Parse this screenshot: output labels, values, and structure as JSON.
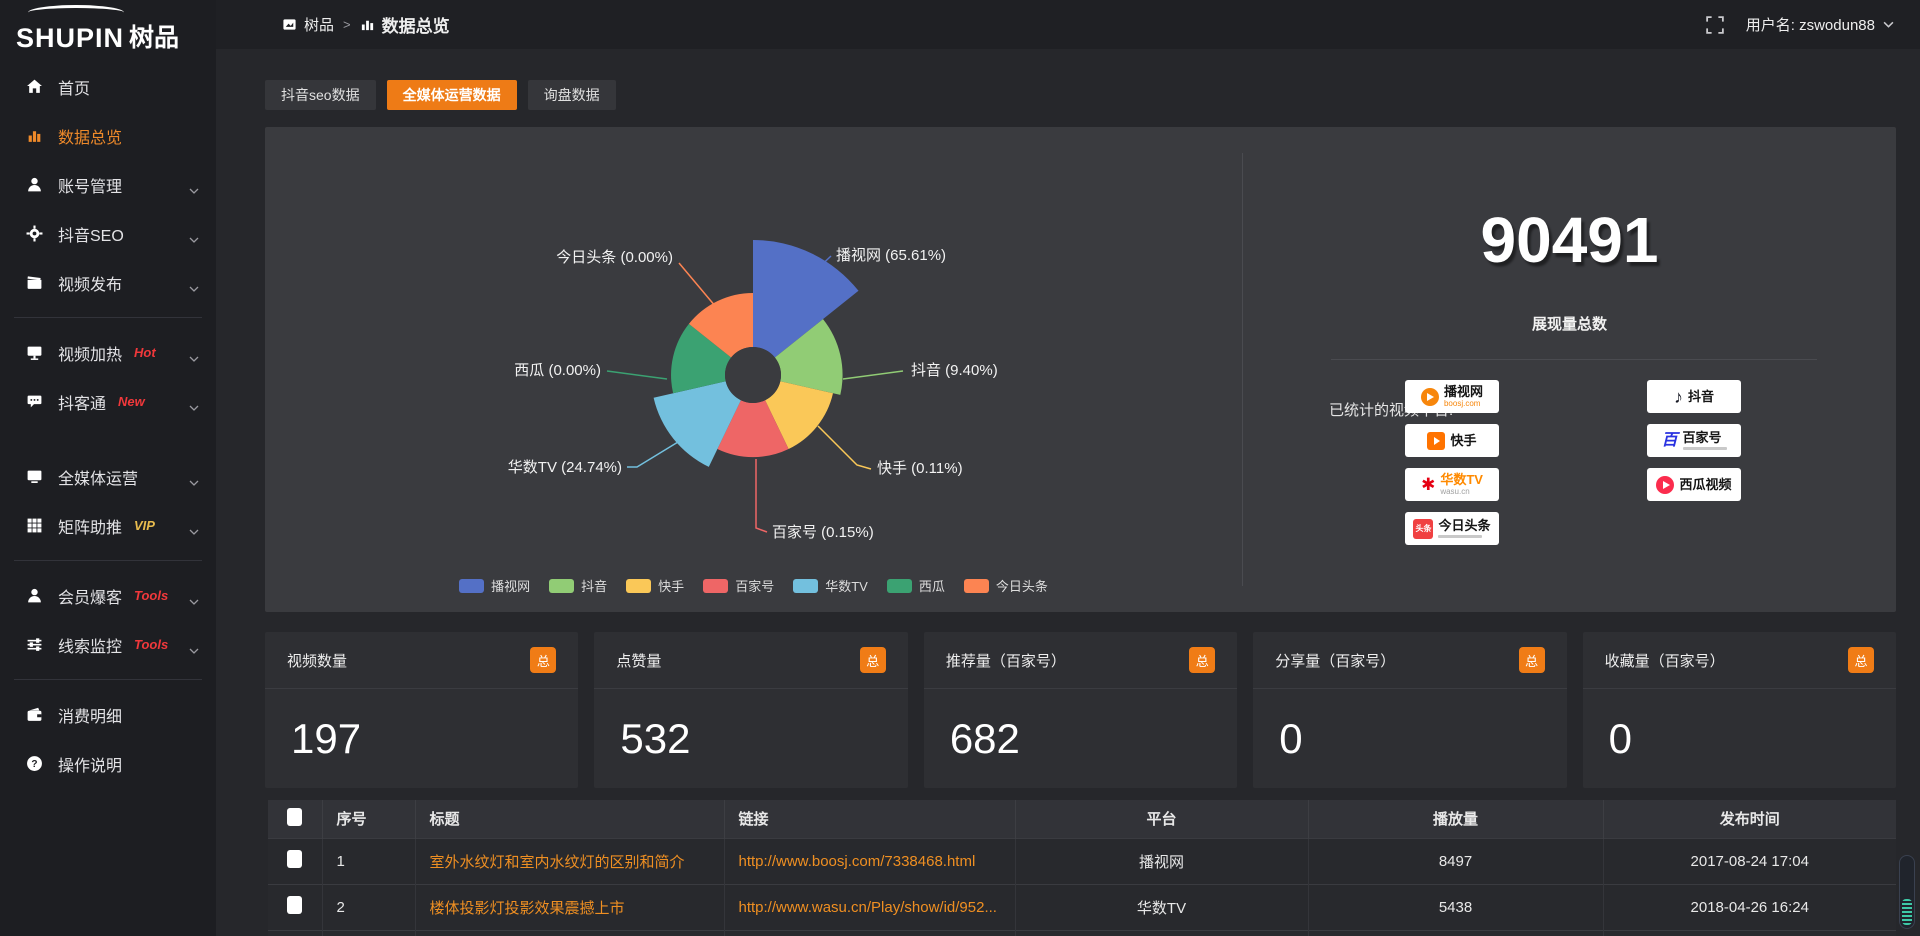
{
  "sidebar": {
    "logo_en": "SHUPIN",
    "logo_cn": "树品",
    "items": [
      {
        "id": "home",
        "icon": "home",
        "label": "首页"
      },
      {
        "id": "data-overview",
        "icon": "chart",
        "label": "数据总览",
        "active": true
      },
      {
        "id": "account",
        "icon": "user",
        "label": "账号管理",
        "chevron": true
      },
      {
        "id": "douyin-seo",
        "icon": "gear",
        "label": "抖音SEO",
        "chevron": true
      },
      {
        "id": "video-publish",
        "icon": "video",
        "label": "视频发布",
        "chevron": true
      },
      {
        "type": "divider"
      },
      {
        "id": "video-heat",
        "icon": "screen",
        "label": "视频加热",
        "badge": "Hot",
        "badge_color": "#f0383b",
        "chevron": true
      },
      {
        "id": "douketong",
        "icon": "chat",
        "label": "抖客通",
        "badge": "New",
        "badge_color": "#f0383b",
        "chevron": true
      },
      {
        "type": "spacer"
      },
      {
        "id": "media-operation",
        "icon": "monitor",
        "label": "全媒体运营",
        "chevron": true
      },
      {
        "id": "matrix-boost",
        "icon": "grid",
        "label": "矩阵助推",
        "badge": "VIP",
        "badge_color": "#e8bc4e",
        "chevron": true
      },
      {
        "type": "divider"
      },
      {
        "id": "member-burst",
        "icon": "user",
        "label": "会员爆客",
        "badge": "Tools",
        "badge_color": "#f0383b",
        "chevron": true
      },
      {
        "id": "clue-monitor",
        "icon": "sliders",
        "label": "线索监控",
        "badge": "Tools",
        "badge_color": "#f0383b",
        "chevron": true
      },
      {
        "type": "divider"
      },
      {
        "id": "consume-detail",
        "icon": "wallet",
        "label": "消费明细"
      },
      {
        "id": "instructions",
        "icon": "question",
        "label": "操作说明"
      }
    ]
  },
  "topbar": {
    "breadcrumb": [
      {
        "label": "树品"
      },
      {
        "label": "数据总览"
      }
    ],
    "user_label": "用户名: zswodun88"
  },
  "tabs": [
    {
      "label": "抖音seo数据"
    },
    {
      "label": "全媒体运营数据",
      "active": true
    },
    {
      "label": "询盘数据"
    }
  ],
  "chart_data": {
    "type": "pie",
    "subtype": "nightingale-rose",
    "label_format": "{name} ({percent}%)",
    "legend_position": "bottom",
    "items": [
      {
        "name": "播视网",
        "percent": 65.61,
        "color": "#5470c6"
      },
      {
        "name": "抖音",
        "percent": 9.4,
        "color": "#91cc75"
      },
      {
        "name": "快手",
        "percent": 0.11,
        "color": "#fac858"
      },
      {
        "name": "百家号",
        "percent": 0.15,
        "color": "#ee6666"
      },
      {
        "name": "华数TV",
        "percent": 24.74,
        "color": "#73c0de"
      },
      {
        "name": "西瓜",
        "percent": 0.0,
        "color": "#3ba272"
      },
      {
        "name": "今日头条",
        "percent": 0.0,
        "color": "#fc8452"
      }
    ]
  },
  "summary": {
    "total": "90491",
    "total_label": "展现量总数",
    "platforms_title": "已统计的视频平台:",
    "platforms_left": [
      {
        "type": "boosj",
        "name": "播视网",
        "sub": "boosj.com",
        "sub_color": "#f7860b"
      },
      {
        "type": "kuaishou",
        "name": "快手"
      },
      {
        "type": "wasu",
        "name": "华数TV",
        "sub": "wasu.cn",
        "sub_color": "#a0a0a0",
        "name_color": "#ff8a00"
      },
      {
        "type": "toutiao",
        "name": "今日头条"
      }
    ],
    "platforms_right": [
      {
        "type": "douyin",
        "name": "抖音"
      },
      {
        "type": "baijia",
        "name": "百家号"
      },
      {
        "type": "xigua",
        "name": "西瓜视频"
      }
    ]
  },
  "cards": [
    {
      "label": "视频数量",
      "badge": "总",
      "value": "197"
    },
    {
      "label": "点赞量",
      "badge": "总",
      "value": "532"
    },
    {
      "label": "推荐量（百家号）",
      "badge": "总",
      "value": "682"
    },
    {
      "label": "分享量（百家号）",
      "badge": "总",
      "value": "0"
    },
    {
      "label": "收藏量（百家号）",
      "badge": "总",
      "value": "0"
    }
  ],
  "table": {
    "headers": [
      "序号",
      "标题",
      "链接",
      "平台",
      "播放量",
      "发布时间"
    ],
    "rows": [
      {
        "no": "1",
        "title": "室外水纹灯和室内水纹灯的区别和简介",
        "link": "http://www.boosj.com/7338468.html",
        "platform": "播视网",
        "plays": "8497",
        "time": "2017-08-24 17:04"
      },
      {
        "no": "2",
        "title": "楼体投影灯投影效果震撼上市",
        "link": "http://www.wasu.cn/Play/show/id/952...",
        "platform": "华数TV",
        "plays": "5438",
        "time": "2018-04-26 16:24"
      }
    ]
  }
}
